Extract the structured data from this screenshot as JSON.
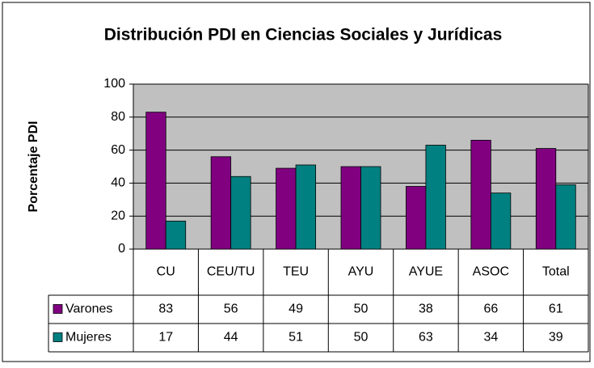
{
  "chart_data": {
    "type": "bar",
    "title": "Distribución PDI en Ciencias Sociales y Jurídicas",
    "y_label": "Porcentaje PDI",
    "categories": [
      "CU",
      "CEU/TU",
      "TEU",
      "AYU",
      "AYUE",
      "ASOC",
      "Total"
    ],
    "series": [
      {
        "name": "Varones",
        "color": "#800080",
        "values": [
          83,
          56,
          49,
          50,
          38,
          66,
          61
        ]
      },
      {
        "name": "Mujeres",
        "color": "#008080",
        "values": [
          17,
          44,
          51,
          50,
          63,
          34,
          39
        ]
      }
    ],
    "ylim": [
      0,
      100
    ],
    "yticks": [
      0,
      20,
      40,
      60,
      80,
      100
    ],
    "grid": true,
    "data_table": true
  }
}
